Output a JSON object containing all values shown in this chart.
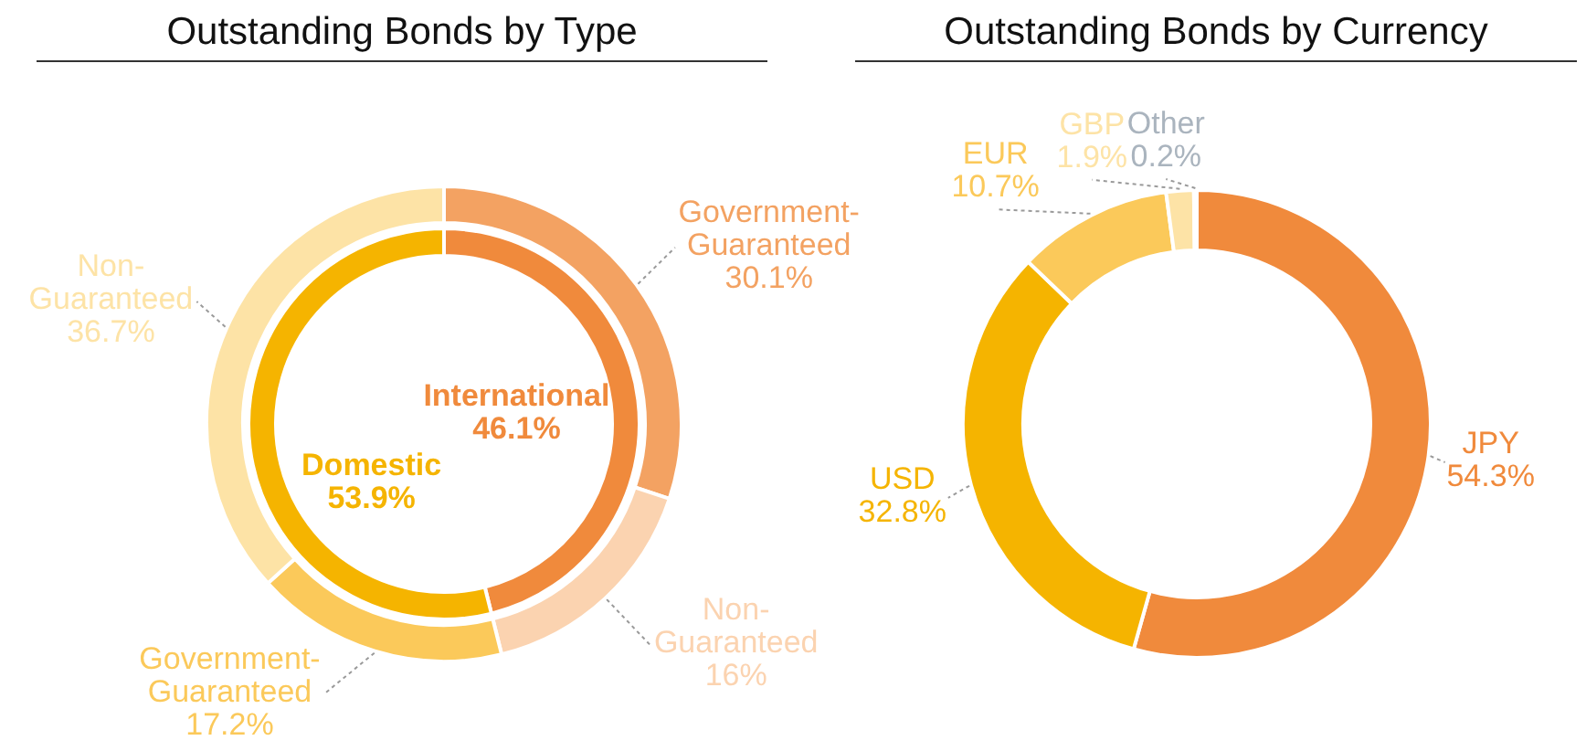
{
  "chart_data": [
    {
      "type": "donut",
      "title": "Outstanding Bonds by Type",
      "categories": [
        "Government-Guaranteed",
        "Non-Guaranteed",
        "Government-Guaranteed",
        "Non-Guaranteed"
      ],
      "values": [
        30.1,
        16,
        17.2,
        36.7
      ],
      "value_labels": [
        "30.1%",
        "16%",
        "17.2%",
        "36.7%"
      ],
      "colors": [
        "#f3a262",
        "#fbd3b0",
        "#fbc95a",
        "#fde3a6"
      ]
    },
    {
      "type": "donut",
      "categories": [
        "International",
        "Domestic"
      ],
      "values": [
        46.1,
        53.9
      ],
      "value_labels": [
        "46.1%",
        "53.9%"
      ],
      "colors": [
        "#f08a3c",
        "#f5b400"
      ]
    },
    {
      "type": "donut",
      "title": "Outstanding Bonds by Currency",
      "categories": [
        "JPY",
        "USD",
        "EUR",
        "GBP",
        "Other"
      ],
      "values": [
        54.3,
        32.8,
        10.7,
        1.9,
        0.2
      ],
      "value_labels": [
        "54.3%",
        "32.8%",
        "10.7%",
        "1.9%",
        "0.2%"
      ],
      "colors": [
        "#f08a3c",
        "#f5b400",
        "#fbc95a",
        "#fde3a6",
        "#aab4be"
      ]
    }
  ]
}
